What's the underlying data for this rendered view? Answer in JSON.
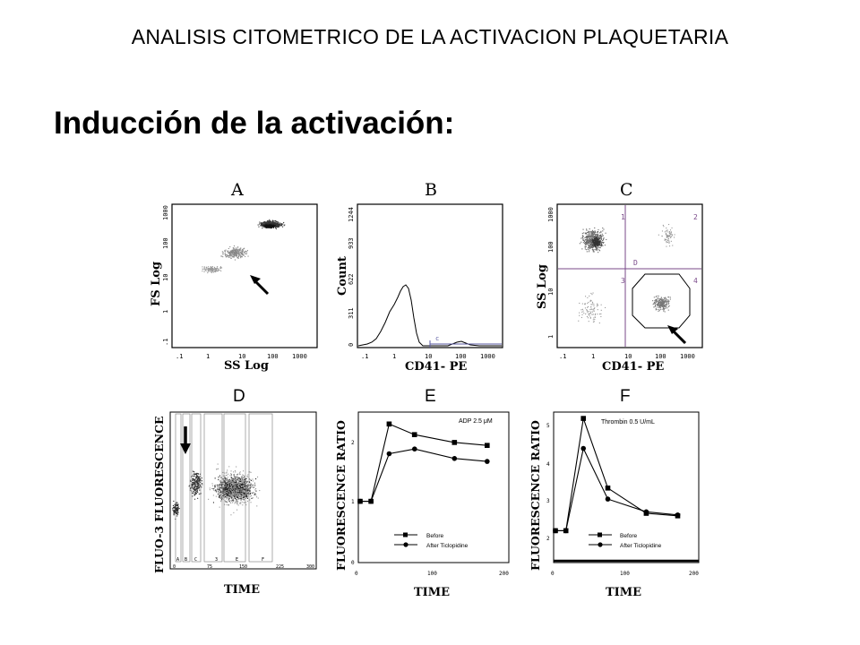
{
  "header": {
    "title": "ANALISIS CITOMETRICO DE LA ACTIVACION PLAQUETARIA"
  },
  "slide": {
    "subtitle": "Inducción de la activación:"
  },
  "figure": {
    "panel_letters": [
      "A",
      "B",
      "C",
      "D",
      "E",
      "F"
    ],
    "panel_a": {
      "xlabel": "SS Log",
      "ylabel": "FS Log",
      "xticks": [
        ".1",
        "1",
        "10",
        "100",
        "1000"
      ],
      "yticks": [
        ".1",
        "1",
        "10",
        "100",
        "1000"
      ]
    },
    "panel_b": {
      "xlabel": "CD41- PE",
      "ylabel": "Count",
      "xticks": [
        ".1",
        "1",
        "10",
        "100",
        "1000"
      ],
      "yticks": [
        "0",
        "311",
        "622",
        "933",
        "1244"
      ],
      "gate_label": "c"
    },
    "panel_c": {
      "xlabel": "CD41- PE",
      "ylabel": "SS Log",
      "xticks": [
        ".1",
        "1",
        "10",
        "100",
        "1000"
      ],
      "yticks": [
        "1",
        "10",
        "100",
        "1000"
      ],
      "quadrants": [
        "1",
        "2",
        "3",
        "4"
      ],
      "gate_label": "D"
    },
    "panel_d": {
      "xlabel": "TIME",
      "ylabel": "FLUO-3 FLUORESCENCE",
      "xticks": [
        "0",
        "75",
        "150",
        "225",
        "300"
      ],
      "segments": [
        "A",
        "B",
        "C",
        "3",
        "E",
        "F"
      ]
    },
    "panel_e": {
      "xlabel": "TIME",
      "ylabel": "FLUORESCENCE RATIO",
      "annotation": "ADP 2.5 μM",
      "xticks": [
        "0",
        "100",
        "200"
      ],
      "yticks": [
        "0",
        "1",
        "2"
      ],
      "legend": [
        "Before",
        "After Ticlopidine"
      ]
    },
    "panel_f": {
      "xlabel": "TIME",
      "ylabel": "FLUORESCENCE RATIO",
      "annotation": "Thrombin 0.5 U/mL",
      "xticks": [
        "0",
        "100",
        "200"
      ],
      "yticks": [
        "2",
        "3",
        "4",
        "5"
      ],
      "legend": [
        "Before",
        "After Ticlopidine"
      ]
    }
  },
  "chart_data": [
    {
      "type": "line",
      "panel": "E",
      "x": [
        0,
        15,
        40,
        75,
        130,
        175
      ],
      "xlim": [
        0,
        200
      ],
      "ylim": [
        0,
        2.5
      ],
      "series": [
        {
          "name": "Before",
          "marker": "square",
          "values": [
            1.0,
            1.0,
            2.3,
            2.12,
            1.99,
            1.94
          ]
        },
        {
          "name": "After Ticlopidine",
          "marker": "circle",
          "values": [
            1.0,
            1.0,
            1.8,
            1.88,
            1.72,
            1.67
          ]
        }
      ]
    },
    {
      "type": "line",
      "panel": "F",
      "x": [
        0,
        15,
        40,
        75,
        130,
        175
      ],
      "xlim": [
        0,
        200
      ],
      "ylim": [
        1,
        5.7
      ],
      "series": [
        {
          "name": "Before",
          "marker": "square",
          "values": [
            1.95,
            1.95,
            5.5,
            3.3,
            2.5,
            2.42
          ]
        },
        {
          "name": "After Ticlopidine",
          "marker": "circle",
          "values": [
            1.95,
            1.95,
            4.55,
            2.95,
            2.55,
            2.45
          ]
        }
      ]
    }
  ]
}
